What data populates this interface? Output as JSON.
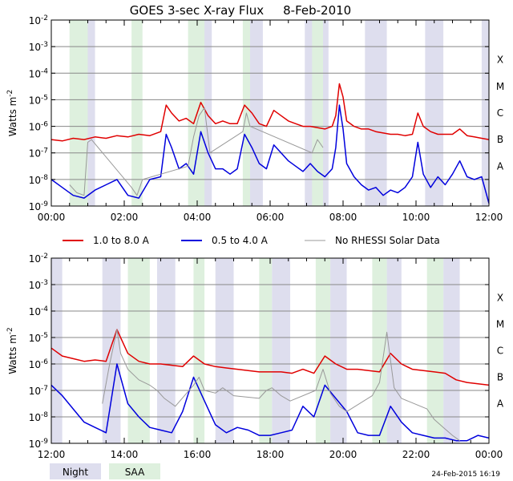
{
  "chart_data": [
    {
      "type": "line",
      "title": "GOES 3-sec X-ray Flux",
      "date": "8-Feb-2010",
      "ylabel_base": "Watts m",
      "ylabel_exp": "-2",
      "ylim_log10": [
        -9,
        -2
      ],
      "y_ticks": [
        {
          "base": "10",
          "exp": "-2",
          "value": -2
        },
        {
          "base": "10",
          "exp": "-3",
          "value": -3
        },
        {
          "base": "10",
          "exp": "-4",
          "value": -4
        },
        {
          "base": "10",
          "exp": "-5",
          "value": -5
        },
        {
          "base": "10",
          "exp": "-6",
          "value": -6
        },
        {
          "base": "10",
          "exp": "-7",
          "value": -7
        },
        {
          "base": "10",
          "exp": "-8",
          "value": -8
        },
        {
          "base": "10",
          "exp": "-9",
          "value": -9
        }
      ],
      "class_labels": [
        {
          "label": "X",
          "value": -3.5
        },
        {
          "label": "M",
          "value": -4.5
        },
        {
          "label": "C",
          "value": -5.5
        },
        {
          "label": "B",
          "value": -6.5
        },
        {
          "label": "A",
          "value": -7.5
        }
      ],
      "xlim_hours": [
        0,
        12
      ],
      "x_ticks": [
        {
          "label": "00:00",
          "hour": 0
        },
        {
          "label": "02:00",
          "hour": 2
        },
        {
          "label": "04:00",
          "hour": 4
        },
        {
          "label": "06:00",
          "hour": 6
        },
        {
          "label": "08:00",
          "hour": 8
        },
        {
          "label": "10:00",
          "hour": 10
        },
        {
          "label": "12:00",
          "hour": 12
        }
      ],
      "night_bands_hours": [
        [
          1.0,
          1.2
        ],
        [
          3.9,
          4.4
        ],
        [
          5.35,
          5.8
        ],
        [
          6.95,
          7.6
        ],
        [
          8.6,
          9.2
        ],
        [
          10.25,
          10.75
        ],
        [
          11.8,
          12.0
        ]
      ],
      "saa_bands_hours": [
        [
          0.5,
          1.0
        ],
        [
          2.2,
          2.5
        ],
        [
          3.75,
          4.2
        ],
        [
          5.25,
          5.45
        ],
        [
          7.15,
          7.45
        ]
      ],
      "series": [
        {
          "name": "1.0 to 8.0 A",
          "color": "#e00000",
          "x": [
            0,
            0.3,
            0.6,
            0.9,
            1.2,
            1.5,
            1.8,
            2.1,
            2.4,
            2.7,
            3.0,
            3.15,
            3.3,
            3.5,
            3.7,
            3.9,
            4.1,
            4.3,
            4.5,
            4.7,
            4.9,
            5.1,
            5.3,
            5.5,
            5.7,
            5.9,
            6.1,
            6.3,
            6.5,
            6.7,
            6.9,
            7.1,
            7.3,
            7.5,
            7.7,
            7.8,
            7.9,
            8.0,
            8.1,
            8.3,
            8.5,
            8.7,
            8.9,
            9.1,
            9.3,
            9.5,
            9.7,
            9.9,
            10.05,
            10.2,
            10.4,
            10.6,
            10.8,
            11.0,
            11.2,
            11.4,
            11.6,
            11.8,
            12.0
          ],
          "y": [
            -6.5,
            -6.55,
            -6.45,
            -6.5,
            -6.4,
            -6.45,
            -6.35,
            -6.4,
            -6.3,
            -6.35,
            -6.2,
            -5.2,
            -5.5,
            -5.8,
            -5.7,
            -5.9,
            -5.1,
            -5.6,
            -5.9,
            -5.8,
            -5.9,
            -5.9,
            -5.2,
            -5.5,
            -5.9,
            -6.0,
            -5.4,
            -5.6,
            -5.8,
            -5.9,
            -6.0,
            -6.0,
            -6.05,
            -6.1,
            -6.0,
            -5.6,
            -4.4,
            -4.9,
            -5.8,
            -6.0,
            -6.1,
            -6.1,
            -6.2,
            -6.25,
            -6.3,
            -6.3,
            -6.35,
            -6.3,
            -5.5,
            -6.0,
            -6.2,
            -6.3,
            -6.3,
            -6.3,
            -6.1,
            -6.35,
            -6.4,
            -6.45,
            -6.5
          ]
        },
        {
          "name": "0.5 to 4.0 A",
          "color": "#0000dd",
          "x": [
            0,
            0.3,
            0.6,
            0.9,
            1.2,
            1.5,
            1.8,
            2.1,
            2.4,
            2.7,
            3.0,
            3.15,
            3.3,
            3.5,
            3.7,
            3.9,
            4.1,
            4.3,
            4.5,
            4.7,
            4.9,
            5.1,
            5.3,
            5.5,
            5.7,
            5.9,
            6.1,
            6.3,
            6.5,
            6.7,
            6.9,
            7.1,
            7.3,
            7.5,
            7.7,
            7.8,
            7.9,
            8.0,
            8.1,
            8.3,
            8.5,
            8.7,
            8.9,
            9.1,
            9.3,
            9.5,
            9.7,
            9.9,
            10.05,
            10.2,
            10.4,
            10.6,
            10.8,
            11.0,
            11.2,
            11.4,
            11.6,
            11.8,
            12.0
          ],
          "y": [
            -8.0,
            -8.3,
            -8.6,
            -8.7,
            -8.4,
            -8.2,
            -8.0,
            -8.6,
            -8.7,
            -8.0,
            -7.9,
            -6.3,
            -6.8,
            -7.6,
            -7.4,
            -7.8,
            -6.2,
            -7.0,
            -7.6,
            -7.6,
            -7.8,
            -7.6,
            -6.3,
            -6.8,
            -7.4,
            -7.6,
            -6.7,
            -7.0,
            -7.3,
            -7.5,
            -7.7,
            -7.4,
            -7.7,
            -7.9,
            -7.6,
            -6.8,
            -5.2,
            -6.1,
            -7.4,
            -7.9,
            -8.2,
            -8.4,
            -8.3,
            -8.6,
            -8.4,
            -8.5,
            -8.3,
            -7.9,
            -6.6,
            -7.8,
            -8.3,
            -7.9,
            -8.2,
            -7.8,
            -7.3,
            -7.9,
            -8.0,
            -7.9,
            -8.9
          ]
        },
        {
          "name": "No RHESSI Solar Data",
          "color": "#999999",
          "x": [
            0.5,
            0.7,
            0.9,
            1.0,
            1.1,
            2.2,
            2.35,
            2.5,
            3.75,
            3.9,
            4.05,
            4.2,
            4.35,
            5.25,
            5.35,
            5.45,
            7.15,
            7.3,
            7.45
          ],
          "y": [
            -8.2,
            -8.5,
            -8.6,
            -6.6,
            -6.5,
            -8.3,
            -8.6,
            -8.0,
            -7.5,
            -6.4,
            -5.6,
            -5.3,
            -7.0,
            -6.2,
            -5.5,
            -6.0,
            -7.0,
            -6.5,
            -6.8
          ]
        }
      ]
    },
    {
      "type": "line",
      "title": "",
      "ylabel_base": "Watts m",
      "ylabel_exp": "-2",
      "ylim_log10": [
        -9,
        -2
      ],
      "y_ticks": [
        {
          "base": "10",
          "exp": "-2",
          "value": -2
        },
        {
          "base": "10",
          "exp": "-3",
          "value": -3
        },
        {
          "base": "10",
          "exp": "-4",
          "value": -4
        },
        {
          "base": "10",
          "exp": "-5",
          "value": -5
        },
        {
          "base": "10",
          "exp": "-6",
          "value": -6
        },
        {
          "base": "10",
          "exp": "-7",
          "value": -7
        },
        {
          "base": "10",
          "exp": "-8",
          "value": -8
        },
        {
          "base": "10",
          "exp": "-9",
          "value": -9
        }
      ],
      "class_labels": [
        {
          "label": "X",
          "value": -3.5
        },
        {
          "label": "M",
          "value": -4.5
        },
        {
          "label": "C",
          "value": -5.5
        },
        {
          "label": "B",
          "value": -6.5
        },
        {
          "label": "A",
          "value": -7.5
        }
      ],
      "xlim_hours": [
        12,
        24
      ],
      "x_ticks": [
        {
          "label": "12:00",
          "hour": 12
        },
        {
          "label": "14:00",
          "hour": 14
        },
        {
          "label": "16:00",
          "hour": 16
        },
        {
          "label": "18:00",
          "hour": 18
        },
        {
          "label": "20:00",
          "hour": 20
        },
        {
          "label": "22:00",
          "hour": 22
        },
        {
          "label": "00:00",
          "hour": 24
        }
      ],
      "night_bands_hours": [
        [
          12.0,
          12.3
        ],
        [
          13.4,
          13.9
        ],
        [
          14.9,
          15.4
        ],
        [
          16.5,
          17.0
        ],
        [
          18.05,
          18.55
        ],
        [
          19.65,
          20.1
        ],
        [
          21.2,
          21.6
        ],
        [
          22.75,
          23.2
        ]
      ],
      "saa_bands_hours": [
        [
          14.1,
          14.7
        ],
        [
          15.9,
          16.2
        ],
        [
          17.7,
          18.05
        ],
        [
          19.25,
          19.65
        ],
        [
          20.8,
          21.2
        ],
        [
          22.3,
          22.75
        ]
      ],
      "series": [
        {
          "name": "1.0 to 8.0 A",
          "color": "#e00000",
          "x": [
            12.0,
            12.3,
            12.6,
            12.9,
            13.2,
            13.5,
            13.8,
            14.1,
            14.4,
            14.7,
            15.0,
            15.3,
            15.6,
            15.9,
            16.2,
            16.5,
            16.8,
            17.1,
            17.4,
            17.7,
            18.0,
            18.3,
            18.6,
            18.9,
            19.2,
            19.5,
            19.8,
            20.1,
            20.4,
            20.7,
            21.0,
            21.3,
            21.6,
            21.9,
            22.2,
            22.5,
            22.8,
            23.1,
            23.4,
            23.7,
            24.0
          ],
          "y": [
            -5.4,
            -5.7,
            -5.8,
            -5.9,
            -5.85,
            -5.9,
            -4.7,
            -5.6,
            -5.9,
            -6.0,
            -6.0,
            -6.05,
            -6.1,
            -5.7,
            -6.0,
            -6.1,
            -6.15,
            -6.2,
            -6.25,
            -6.3,
            -6.3,
            -6.3,
            -6.35,
            -6.2,
            -6.35,
            -5.7,
            -6.0,
            -6.2,
            -6.2,
            -6.25,
            -6.3,
            -5.6,
            -6.0,
            -6.2,
            -6.25,
            -6.3,
            -6.35,
            -6.6,
            -6.7,
            -6.75,
            -6.8
          ]
        },
        {
          "name": "0.5 to 4.0 A",
          "color": "#0000dd",
          "x": [
            12.0,
            12.3,
            12.6,
            12.9,
            13.2,
            13.5,
            13.8,
            14.1,
            14.4,
            14.7,
            15.0,
            15.3,
            15.6,
            15.9,
            16.2,
            16.5,
            16.8,
            17.1,
            17.4,
            17.7,
            18.0,
            18.3,
            18.6,
            18.9,
            19.2,
            19.5,
            19.8,
            20.1,
            20.4,
            20.7,
            21.0,
            21.3,
            21.6,
            21.9,
            22.2,
            22.5,
            22.8,
            23.1,
            23.4,
            23.7,
            24.0
          ],
          "y": [
            -6.8,
            -7.2,
            -7.7,
            -8.2,
            -8.4,
            -8.6,
            -6.0,
            -7.5,
            -8.0,
            -8.4,
            -8.5,
            -8.6,
            -7.8,
            -6.5,
            -7.4,
            -8.3,
            -8.6,
            -8.4,
            -8.5,
            -8.7,
            -8.7,
            -8.6,
            -8.5,
            -7.6,
            -8.0,
            -6.8,
            -7.3,
            -7.8,
            -8.6,
            -8.7,
            -8.7,
            -7.6,
            -8.2,
            -8.6,
            -8.7,
            -8.8,
            -8.8,
            -8.9,
            -8.9,
            -8.7,
            -8.8
          ]
        },
        {
          "name": "No RHESSI Solar Data",
          "color": "#999999",
          "x": [
            13.4,
            13.6,
            13.8,
            13.9,
            14.1,
            14.4,
            14.7,
            14.9,
            15.1,
            15.4,
            15.9,
            16.05,
            16.2,
            16.5,
            16.7,
            17.0,
            17.7,
            17.9,
            18.05,
            18.3,
            18.55,
            19.25,
            19.45,
            19.65,
            19.9,
            20.1,
            20.8,
            21.0,
            21.2,
            21.4,
            21.6,
            22.3,
            22.5,
            22.75,
            23.0,
            23.2
          ],
          "y": [
            -7.5,
            -6.0,
            -4.7,
            -5.6,
            -6.2,
            -6.6,
            -6.8,
            -7.0,
            -7.3,
            -7.6,
            -6.8,
            -6.5,
            -7.0,
            -7.1,
            -6.9,
            -7.2,
            -7.3,
            -7.0,
            -6.9,
            -7.2,
            -7.4,
            -7.0,
            -6.2,
            -7.1,
            -7.6,
            -7.8,
            -7.2,
            -6.7,
            -4.8,
            -6.9,
            -7.3,
            -7.7,
            -8.1,
            -8.4,
            -8.7,
            -8.9
          ]
        }
      ]
    }
  ],
  "legend": [
    {
      "label": "1.0 to 8.0 A",
      "color": "#e00000"
    },
    {
      "label": "0.5 to 4.0 A",
      "color": "#0000dd"
    },
    {
      "label": "No RHESSI Solar Data",
      "color": "#999999"
    }
  ],
  "key": [
    {
      "label": "Night",
      "color": "#dedeee"
    },
    {
      "label": "SAA",
      "color": "#def0de"
    }
  ],
  "timestamp": "24-Feb-2015 16:19",
  "colors": {
    "night": "#dedeee",
    "saa": "#def0de",
    "grid": "#888888",
    "axis": "#000000"
  }
}
